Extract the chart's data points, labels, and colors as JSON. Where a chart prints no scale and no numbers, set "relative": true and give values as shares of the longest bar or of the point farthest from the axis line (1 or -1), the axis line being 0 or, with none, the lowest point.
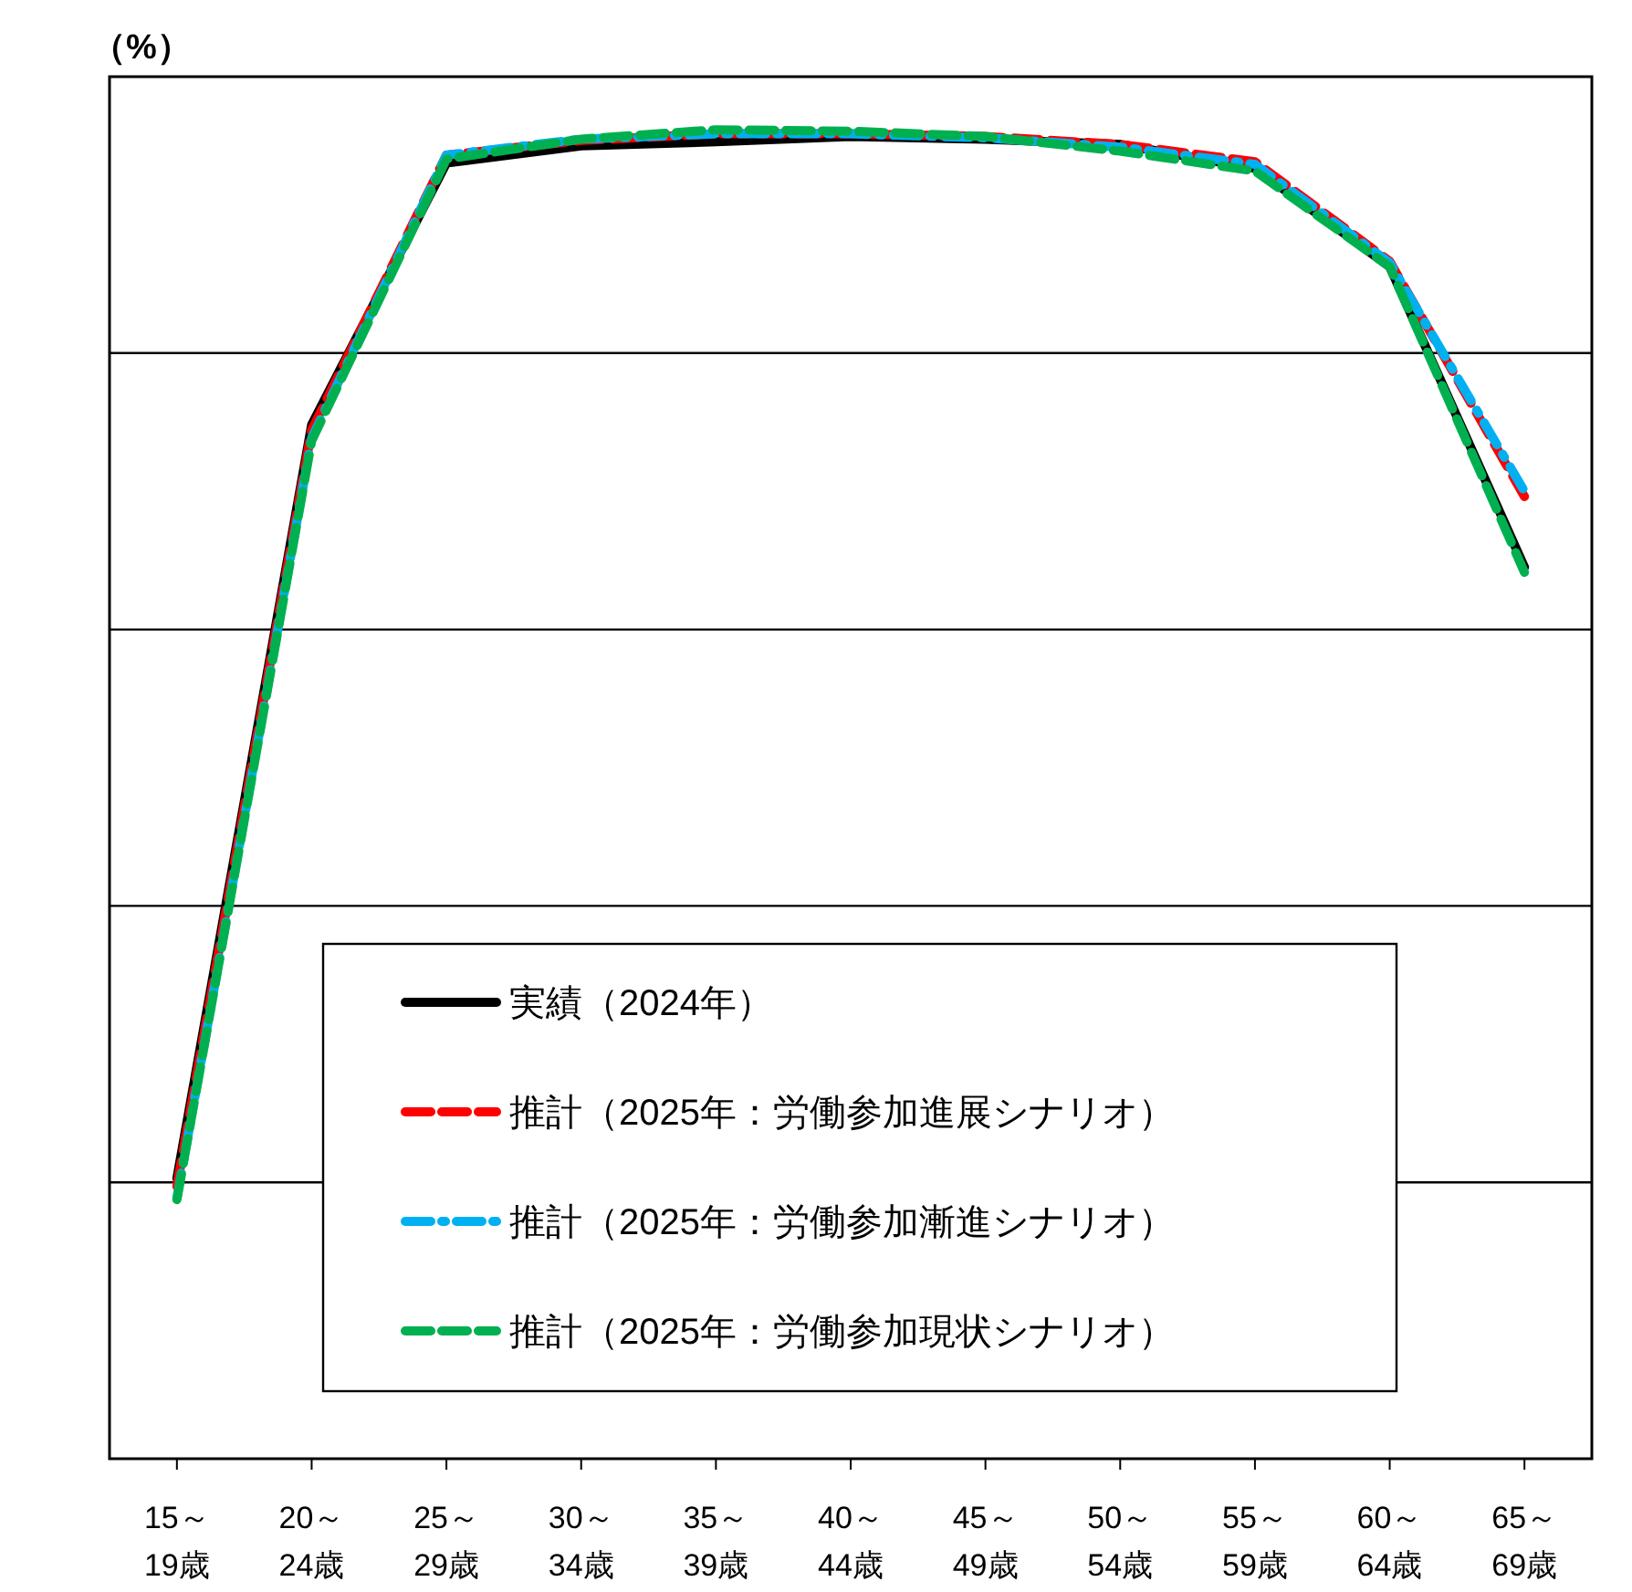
{
  "chart_data": {
    "type": "line",
    "relative": true,
    "ylabel": "（%）",
    "grid": "y",
    "legend": "bottom",
    "categories": [
      "15～\n19歳",
      "20～\n24歳",
      "25～\n29歳",
      "30～\n34歳",
      "35～\n39歳",
      "40～\n44歳",
      "45～\n49歳",
      "50～\n54歳",
      "55～\n59歳",
      "60～\n64歳",
      "65～\n69歳"
    ],
    "series": [
      {
        "name": "実績（2024年）",
        "color": "#000000",
        "line_style": "solid",
        "values": [
          0.211,
          0.778,
          0.975,
          0.988,
          0.991,
          0.995,
          0.993,
          0.989,
          0.971,
          0.897,
          0.671
        ]
      },
      {
        "name": "推計（2025年：労働参加進展シナリオ）",
        "color": "#ff0000",
        "line_style": "dashed",
        "values": [
          0.205,
          0.774,
          0.981,
          0.992,
          0.997,
          0.997,
          0.995,
          0.989,
          0.976,
          0.901,
          0.724
        ]
      },
      {
        "name": "推計（2025年：労働参加漸進シナリオ）",
        "color": "#00b0f0",
        "line_style": "dashdot",
        "values": [
          0.196,
          0.768,
          0.981,
          0.993,
          0.997,
          0.997,
          0.994,
          0.987,
          0.974,
          0.9,
          0.728
        ]
      },
      {
        "name": "推計（2025年：労働参加現状シナリオ）",
        "color": "#00b050",
        "line_style": "dashed",
        "values": [
          0.195,
          0.766,
          0.978,
          0.993,
          1,
          0.999,
          0.995,
          0.984,
          0.969,
          0.897,
          0.667
        ]
      }
    ]
  }
}
